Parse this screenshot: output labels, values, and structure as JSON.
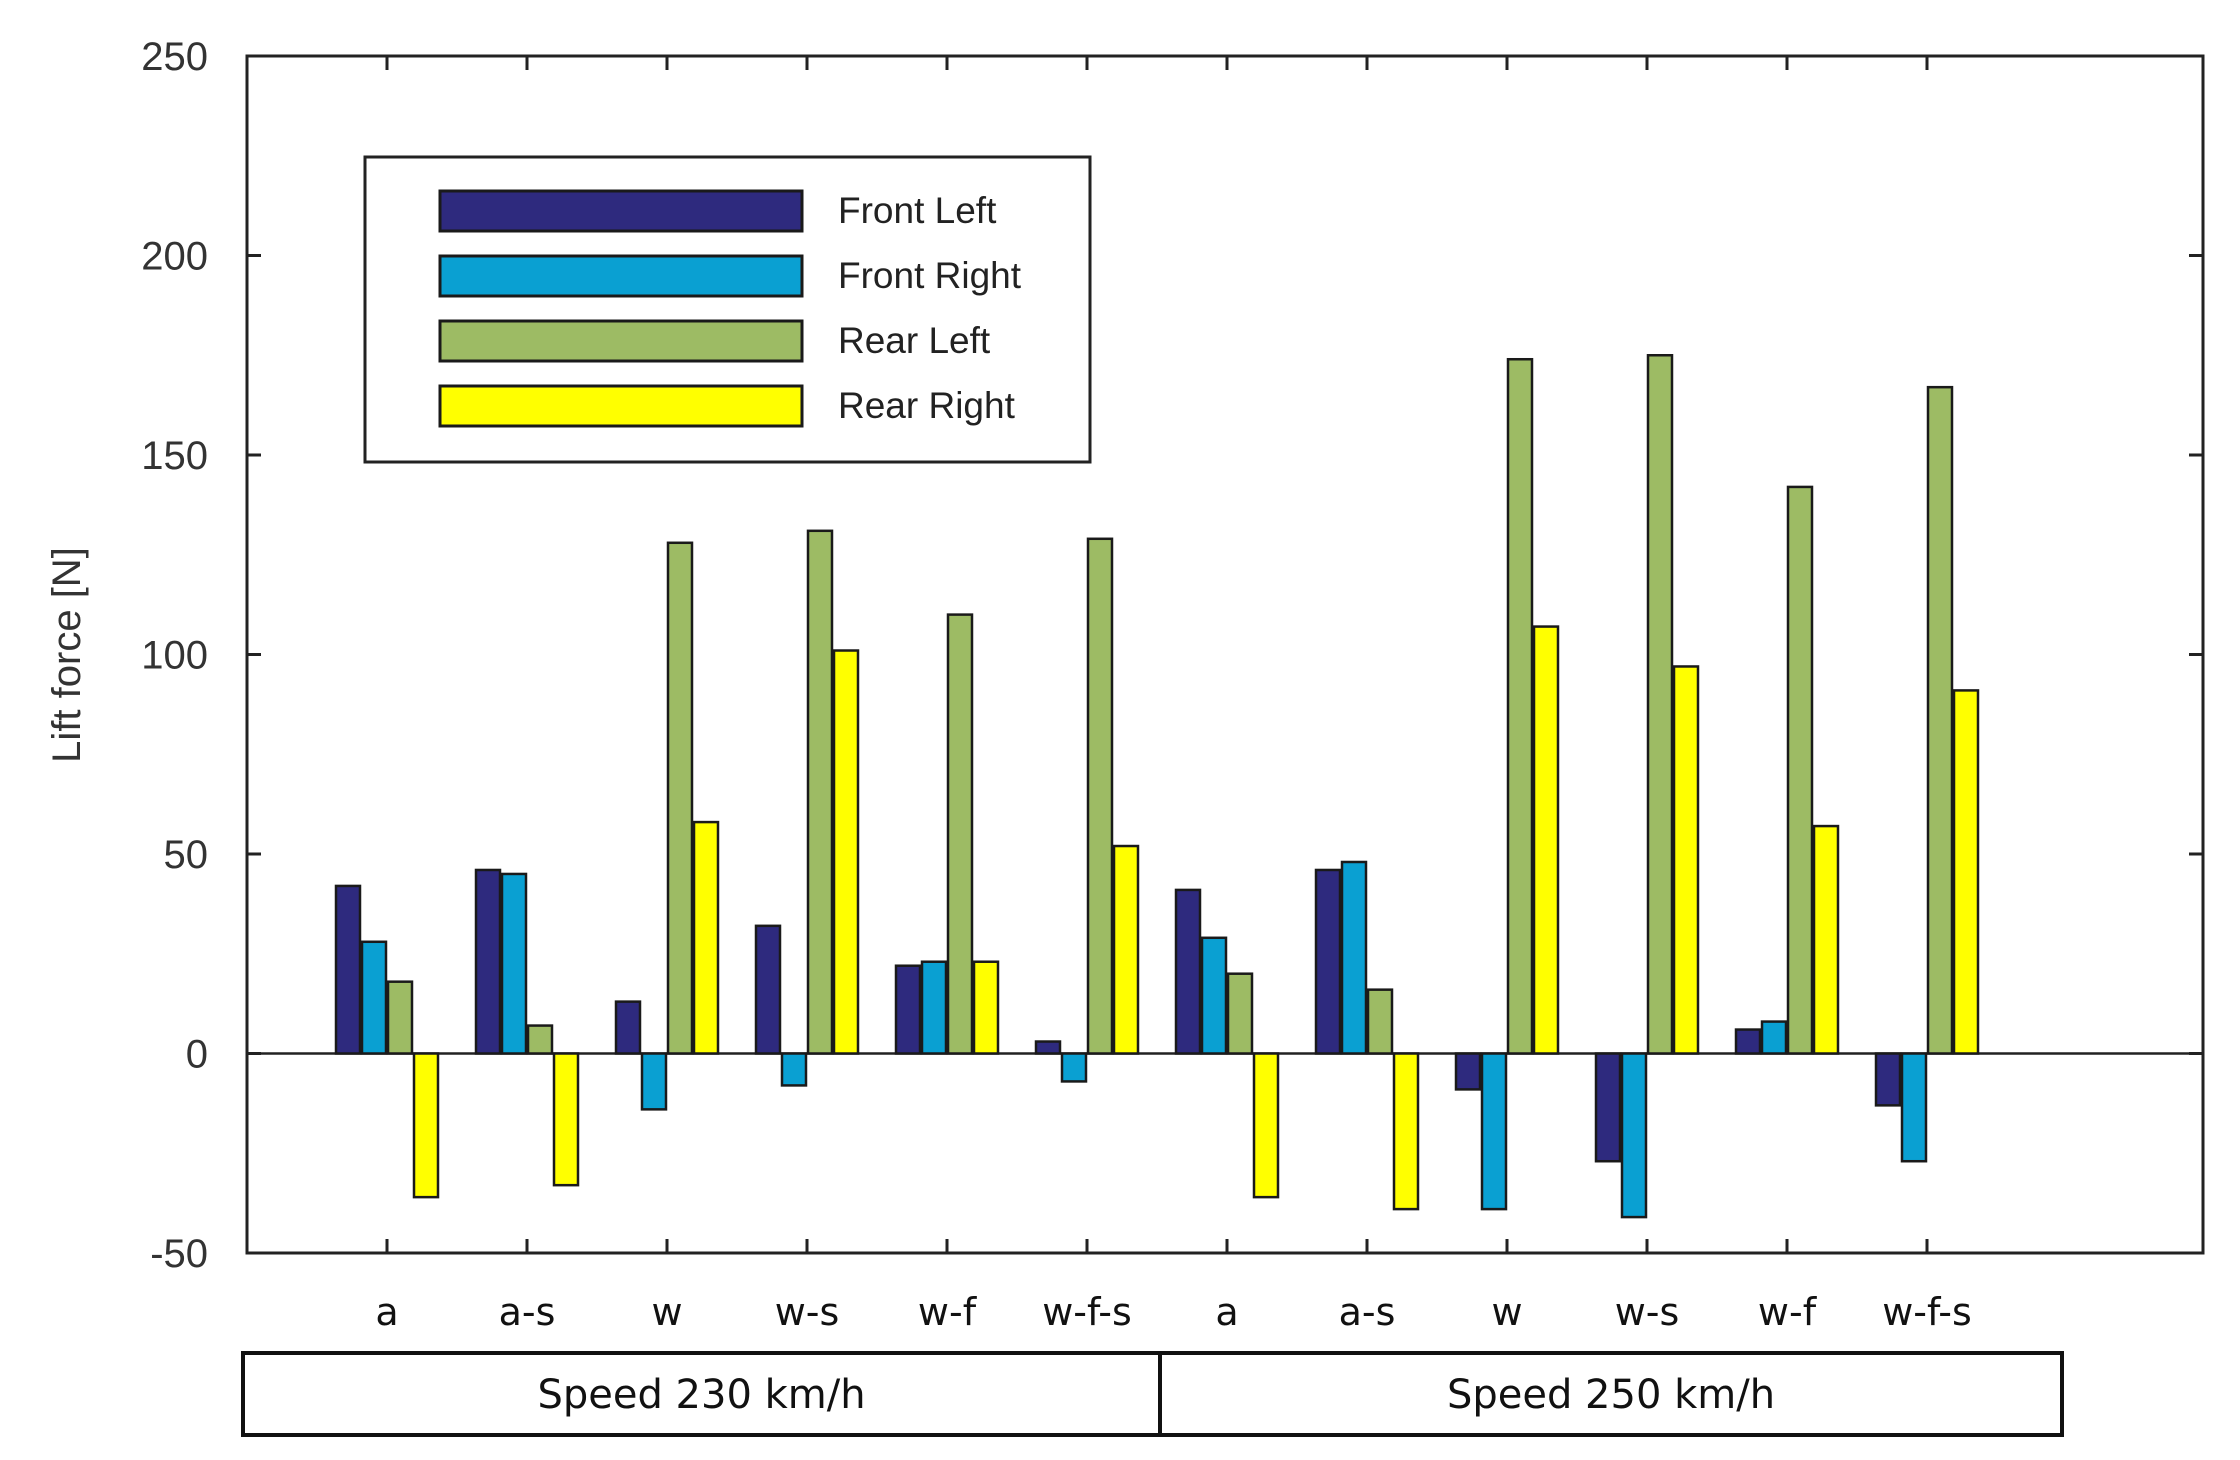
{
  "chart_data": {
    "type": "bar",
    "title": "",
    "xlabel": "",
    "ylabel": "Lift force [N]",
    "ylim": [
      -50,
      250
    ],
    "yticks": [
      -50,
      0,
      50,
      100,
      150,
      200,
      250
    ],
    "grid": false,
    "legend_position": "top-left",
    "categories": [
      "a",
      "a-s",
      "w",
      "w-s",
      "w-f",
      "w-f-s",
      "a",
      "a-s",
      "w",
      "w-s",
      "w-f",
      "w-f-s"
    ],
    "groups": [
      {
        "label": "Speed 230 km/h",
        "categories": 6
      },
      {
        "label": "Speed 250 km/h",
        "categories": 6
      }
    ],
    "series": [
      {
        "name": "Front Left",
        "color": "#2e2a7e",
        "values": [
          42,
          46,
          13,
          32,
          22,
          3,
          41,
          46,
          -9,
          -27,
          6,
          -13
        ]
      },
      {
        "name": "Front Right",
        "color": "#0aa0d2",
        "values": [
          28,
          45,
          -14,
          -8,
          23,
          -7,
          29,
          48,
          -39,
          -41,
          8,
          -27
        ]
      },
      {
        "name": "Rear Left",
        "color": "#9dbb64",
        "values": [
          18,
          7,
          128,
          131,
          110,
          129,
          20,
          16,
          174,
          175,
          142,
          167
        ]
      },
      {
        "name": "Rear Right",
        "color": "#ffff00",
        "values": [
          -36,
          -33,
          58,
          101,
          23,
          52,
          -36,
          -39,
          107,
          97,
          57,
          91
        ]
      }
    ]
  }
}
